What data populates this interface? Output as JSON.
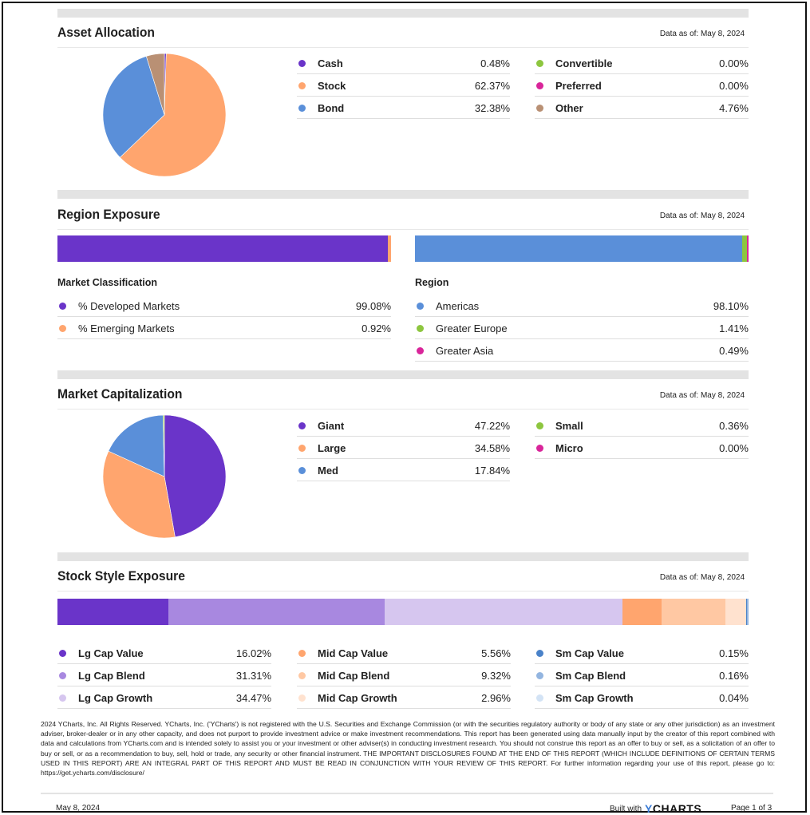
{
  "asset_allocation": {
    "title": "Asset Allocation",
    "as_of": "Data as of: May 8, 2024",
    "items": [
      {
        "label": "Cash",
        "value": "0.48%",
        "pct": 0.48,
        "color": "#6a34c9"
      },
      {
        "label": "Stock",
        "value": "62.37%",
        "pct": 62.37,
        "color": "#ffa56e"
      },
      {
        "label": "Bond",
        "value": "32.38%",
        "pct": 32.38,
        "color": "#5a8fd9"
      },
      {
        "label": "Convertible",
        "value": "0.00%",
        "pct": 0.0,
        "color": "#8dc63f"
      },
      {
        "label": "Preferred",
        "value": "0.00%",
        "pct": 0.0,
        "color": "#d9259a"
      },
      {
        "label": "Other",
        "value": "4.76%",
        "pct": 4.76,
        "color": "#b99074"
      }
    ]
  },
  "region_exposure": {
    "title": "Region Exposure",
    "as_of": "Data as of: May 8, 2024",
    "market_classification": {
      "heading": "Market Classification",
      "items": [
        {
          "label": "% Developed Markets",
          "value": "99.08%",
          "pct": 99.08,
          "color": "#6a34c9"
        },
        {
          "label": "% Emerging Markets",
          "value": "0.92%",
          "pct": 0.92,
          "color": "#ffa56e"
        }
      ]
    },
    "region": {
      "heading": "Region",
      "items": [
        {
          "label": "Americas",
          "value": "98.10%",
          "pct": 98.1,
          "color": "#5a8fd9"
        },
        {
          "label": "Greater Europe",
          "value": "1.41%",
          "pct": 1.41,
          "color": "#8dc63f"
        },
        {
          "label": "Greater Asia",
          "value": "0.49%",
          "pct": 0.49,
          "color": "#d9259a"
        }
      ]
    }
  },
  "market_cap": {
    "title": "Market Capitalization",
    "as_of": "Data as of: May 8, 2024",
    "items": [
      {
        "label": "Giant",
        "value": "47.22%",
        "pct": 47.22,
        "color": "#6a34c9"
      },
      {
        "label": "Large",
        "value": "34.58%",
        "pct": 34.58,
        "color": "#ffa56e"
      },
      {
        "label": "Med",
        "value": "17.84%",
        "pct": 17.84,
        "color": "#5a8fd9"
      },
      {
        "label": "Small",
        "value": "0.36%",
        "pct": 0.36,
        "color": "#8dc63f"
      },
      {
        "label": "Micro",
        "value": "0.00%",
        "pct": 0.0,
        "color": "#d9259a"
      }
    ]
  },
  "stock_style": {
    "title": "Stock Style Exposure",
    "as_of": "Data as of: May 8, 2024",
    "items": [
      {
        "label": "Lg Cap Value",
        "value": "16.02%",
        "pct": 16.02,
        "color": "#6a34c9"
      },
      {
        "label": "Lg Cap Blend",
        "value": "31.31%",
        "pct": 31.31,
        "color": "#a888e0"
      },
      {
        "label": "Lg Cap Growth",
        "value": "34.47%",
        "pct": 34.47,
        "color": "#d6c6ef"
      },
      {
        "label": "Mid Cap Value",
        "value": "5.56%",
        "pct": 5.56,
        "color": "#ffa56e"
      },
      {
        "label": "Mid Cap Blend",
        "value": "9.32%",
        "pct": 9.32,
        "color": "#ffc8a3"
      },
      {
        "label": "Mid Cap Growth",
        "value": "2.96%",
        "pct": 2.96,
        "color": "#ffe2cf"
      },
      {
        "label": "Sm Cap Value",
        "value": "0.15%",
        "pct": 0.15,
        "color": "#4a82c9"
      },
      {
        "label": "Sm Cap Blend",
        "value": "0.16%",
        "pct": 0.16,
        "color": "#93b5e0"
      },
      {
        "label": "Sm Cap Growth",
        "value": "0.04%",
        "pct": 0.04,
        "color": "#d3e3f5"
      }
    ]
  },
  "disclaimer": "2024 YCharts, Inc. All Rights Reserved. YCharts, Inc. ('YCharts') is not registered with the U.S. Securities and Exchange Commission (or with the securities regulatory authority or body of any state or any other jurisdiction) as an investment adviser, broker-dealer or in any other capacity, and does not purport to provide investment advice or make investment recommendations. This report has been generated using data manually input by the creator of this report combined with data and calculations from YCharts.com and is intended solely to assist you or your investment or other adviser(s) in conducting investment research. You should not construe this report as an offer to buy or sell, as a solicitation of an offer to buy or sell, or as a recommendation to buy, sell, hold or trade, any security or other financial instrument. THE IMPORTANT DISCLOSURES FOUND AT THE END OF THIS REPORT (WHICH INCLUDE DEFINITIONS OF CERTAIN TERMS USED IN THIS REPORT) ARE AN INTEGRAL PART OF THIS REPORT AND MUST BE READ IN CONJUNCTION WITH YOUR REVIEW OF THIS REPORT.  For further information regarding your use of this report, please go to: https://get.ycharts.com/disclosure/",
  "footer": {
    "date": "May 8, 2024",
    "built_with": "Built with",
    "logo_y": "Y",
    "logo_rest": "CHARTS",
    "page": "Page 1 of 3"
  }
}
